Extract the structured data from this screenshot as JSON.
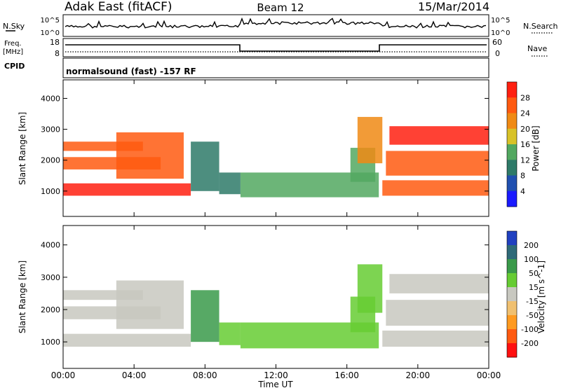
{
  "header": {
    "station": "Adak East (fitACF)",
    "beam": "Beam 12",
    "date": "15/Mar/2014"
  },
  "strips": {
    "nsky_label": "N.Sky",
    "nsky_ticks": [
      "10^5",
      "10^0"
    ],
    "nsearch_label": "N.Search",
    "freq_label_line1": "Freq.",
    "freq_label_line2": "[MHz]",
    "freq_ticks": [
      "18",
      "8"
    ],
    "nave_ticks": [
      "60",
      "0"
    ],
    "nave_label": "Nave",
    "cpid_label": "CPID",
    "cpid_text": "normalsound (fast) -157 RF"
  },
  "x_axis": {
    "label": "Time UT",
    "ticks": [
      "00:00",
      "04:00",
      "08:00",
      "12:00",
      "16:00",
      "20:00",
      "00:00"
    ]
  },
  "chart_data": [
    {
      "type": "heatmap",
      "title": "",
      "xlabel": "Time UT",
      "ylabel": "Slant Range [km]",
      "x_ticks": [
        "00:00",
        "04:00",
        "08:00",
        "12:00",
        "16:00",
        "20:00",
        "00:00"
      ],
      "x_range_hours": [
        0,
        24
      ],
      "y_ticks": [
        1000,
        2000,
        3000,
        4000
      ],
      "ylim": [
        180,
        4600
      ],
      "colorbar": {
        "label": "Power [dB]",
        "ticks": [
          "4",
          "8",
          "12",
          "16",
          "20",
          "24",
          "28"
        ],
        "colors": [
          "#1a1aff",
          "#2050b0",
          "#2e7a68",
          "#52a860",
          "#d8c228",
          "#f08a14",
          "#ff5a10",
          "#ff2010"
        ]
      },
      "regions": [
        {
          "t": [
            0.0,
            7.2
          ],
          "range": [
            850,
            1250
          ],
          "level": 7
        },
        {
          "t": [
            0.0,
            5.5
          ],
          "range": [
            1700,
            2100
          ],
          "level": 6
        },
        {
          "t": [
            0.0,
            4.5
          ],
          "range": [
            2300,
            2600
          ],
          "level": 6
        },
        {
          "t": [
            3.0,
            6.8
          ],
          "range": [
            1400,
            2900
          ],
          "level": 6
        },
        {
          "t": [
            7.2,
            8.8
          ],
          "range": [
            1000,
            2600
          ],
          "level": 2
        },
        {
          "t": [
            8.8,
            10.0
          ],
          "range": [
            900,
            1600
          ],
          "level": 2
        },
        {
          "t": [
            10.0,
            17.8
          ],
          "range": [
            800,
            1600
          ],
          "level": 3
        },
        {
          "t": [
            16.2,
            17.6
          ],
          "range": [
            1300,
            2400
          ],
          "level": 3
        },
        {
          "t": [
            16.6,
            18.0
          ],
          "range": [
            1900,
            3400
          ],
          "level": 5
        },
        {
          "t": [
            18.0,
            24.0
          ],
          "range": [
            850,
            1350
          ],
          "level": 6
        },
        {
          "t": [
            18.2,
            24.0
          ],
          "range": [
            1500,
            2300
          ],
          "level": 6
        },
        {
          "t": [
            18.4,
            24.0
          ],
          "range": [
            2500,
            3100
          ],
          "level": 7
        }
      ]
    },
    {
      "type": "heatmap",
      "title": "",
      "xlabel": "Time UT",
      "ylabel": "Slant Range [km]",
      "x_ticks": [
        "00:00",
        "04:00",
        "08:00",
        "12:00",
        "16:00",
        "20:00",
        "00:00"
      ],
      "x_range_hours": [
        0,
        24
      ],
      "y_ticks": [
        1000,
        2000,
        3000,
        4000
      ],
      "ylim": [
        180,
        4600
      ],
      "colorbar": {
        "label": "Velocity [m s^-1]",
        "ticks": [
          "200",
          "100",
          "50",
          "15",
          "-15",
          "-50",
          "-100",
          "-200"
        ],
        "colors": [
          "#2040c0",
          "#2e6a78",
          "#3a9a4a",
          "#66cc33",
          "#c8c8c0",
          "#f0c070",
          "#ff9a20",
          "#ff5a10",
          "#ff1010"
        ]
      },
      "regions": [
        {
          "t": [
            0.0,
            7.2
          ],
          "range": [
            850,
            1250
          ],
          "level": 4
        },
        {
          "t": [
            0.0,
            5.5
          ],
          "range": [
            1700,
            2100
          ],
          "level": 4
        },
        {
          "t": [
            0.0,
            4.5
          ],
          "range": [
            2300,
            2600
          ],
          "level": 4
        },
        {
          "t": [
            3.0,
            6.8
          ],
          "range": [
            1400,
            2900
          ],
          "level": 4
        },
        {
          "t": [
            7.2,
            8.8
          ],
          "range": [
            1000,
            2600
          ],
          "level": 2
        },
        {
          "t": [
            8.8,
            10.0
          ],
          "range": [
            900,
            1600
          ],
          "level": 3
        },
        {
          "t": [
            10.0,
            17.8
          ],
          "range": [
            800,
            1600
          ],
          "level": 3
        },
        {
          "t": [
            16.2,
            17.6
          ],
          "range": [
            1300,
            2400
          ],
          "level": 3
        },
        {
          "t": [
            16.6,
            18.0
          ],
          "range": [
            1900,
            3400
          ],
          "level": 3
        },
        {
          "t": [
            18.0,
            24.0
          ],
          "range": [
            850,
            1350
          ],
          "level": 4
        },
        {
          "t": [
            18.2,
            24.0
          ],
          "range": [
            1500,
            2300
          ],
          "level": 4
        },
        {
          "t": [
            18.4,
            24.0
          ],
          "range": [
            2500,
            3100
          ],
          "level": 4
        }
      ]
    }
  ]
}
